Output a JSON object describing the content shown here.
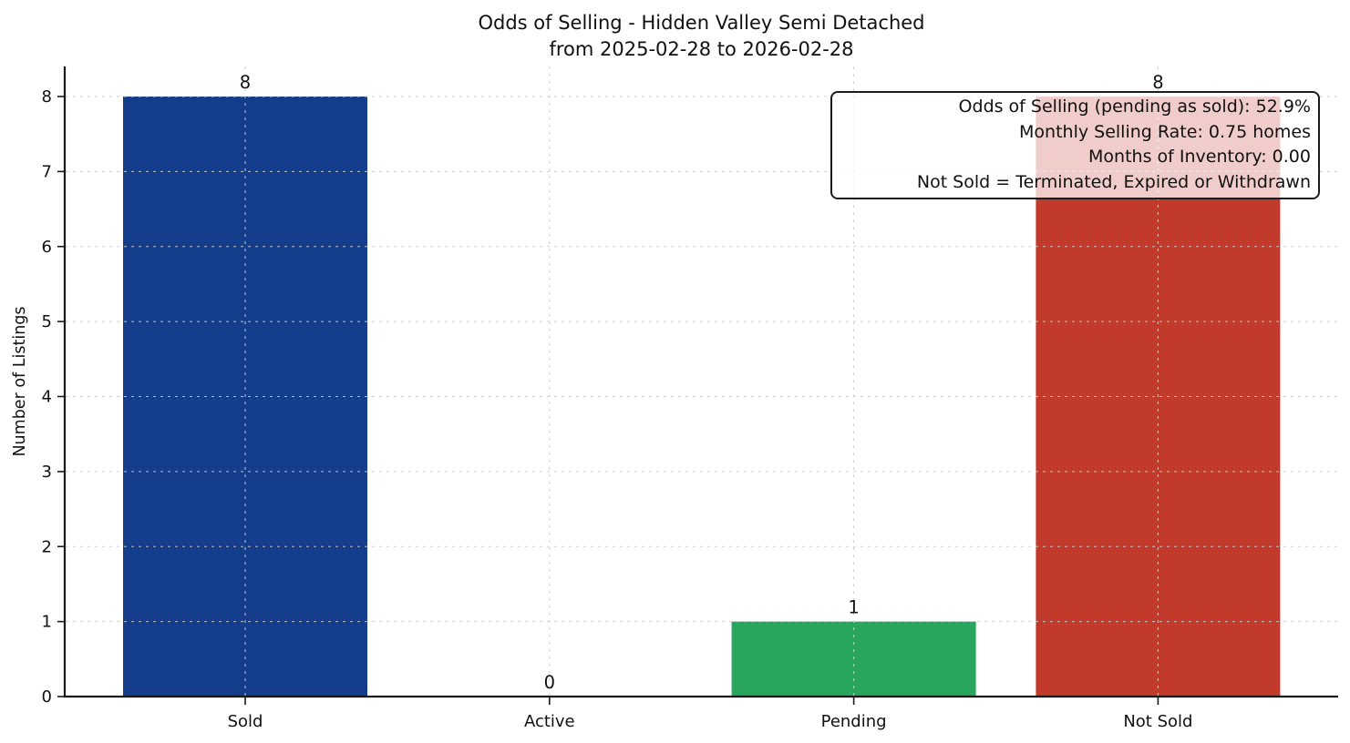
{
  "chart_data": {
    "type": "bar",
    "title_line1": "Odds of Selling - Hidden Valley Semi Detached",
    "title_line2": "from 2025-02-28 to 2026-02-28",
    "ylabel": "Number of Listings",
    "xlabel": "",
    "categories": [
      "Sold",
      "Active",
      "Pending",
      "Not Sold"
    ],
    "values": [
      8,
      0,
      1,
      8
    ],
    "bar_colors": [
      "#143d8c",
      null,
      "#28a65d",
      "#c23a2c"
    ],
    "yticks": [
      0,
      1,
      2,
      3,
      4,
      5,
      6,
      7,
      8
    ],
    "ylim": [
      0,
      8.4
    ],
    "grid": "dashed, horizontal and vertical, drawn over bars",
    "legend_position": "none",
    "axis_color": "#1a1a1a",
    "grid_color": "#cdcdcd",
    "background_color": "#ffffff",
    "annotation": {
      "lines": [
        "Odds of Selling (pending as sold): 52.9%",
        "Monthly Selling Rate: 0.75 homes",
        "Months of Inventory: 0.00",
        "Not Sold = Terminated, Expired or Withdrawn"
      ]
    }
  }
}
